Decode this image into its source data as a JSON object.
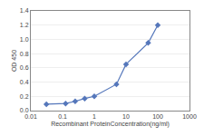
{
  "chart_data": {
    "type": "line",
    "x": [
      0.031,
      0.125,
      0.25,
      0.5,
      1,
      5,
      10,
      50,
      100
    ],
    "values": [
      0.09,
      0.1,
      0.13,
      0.17,
      0.2,
      0.37,
      0.65,
      0.95,
      1.2
    ],
    "color": "#5577BB",
    "marker": "diamond",
    "xlabel": "Recombinant ProteinConcentration(ng/ml)",
    "ylabel": "OD 450",
    "log": "x",
    "xlim": [
      0.01,
      1000
    ],
    "ylim": [
      0,
      1.4
    ],
    "xticks": [
      0.01,
      0.1,
      1,
      10,
      100,
      1000
    ],
    "yticks": [
      {
        "value": 0,
        "label": "0.0"
      },
      0.2,
      0.4,
      0.6,
      0.8,
      {
        "value": 1.0,
        "label": "1.0"
      },
      1.2,
      1.4
    ],
    "grid": "y"
  }
}
